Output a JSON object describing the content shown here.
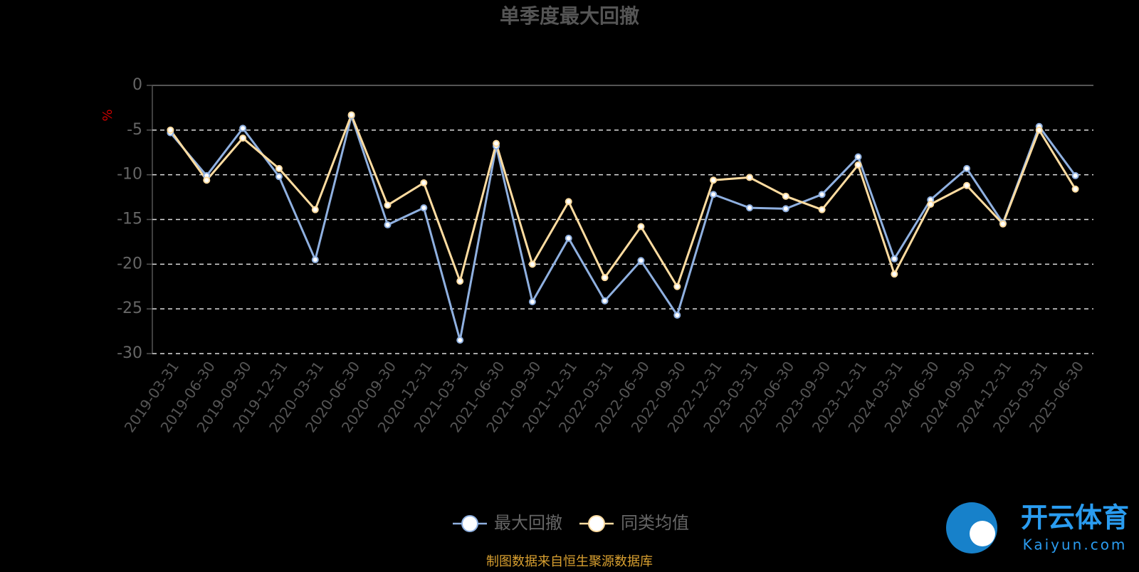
{
  "chart_data": {
    "type": "line",
    "title": "单季度最大回撤",
    "y_label": "%",
    "categories": [
      "2019-03-31",
      "2019-06-30",
      "2019-09-30",
      "2019-12-31",
      "2020-03-31",
      "2020-06-30",
      "2020-09-30",
      "2020-12-31",
      "2021-03-31",
      "2021-06-30",
      "2021-09-30",
      "2021-12-31",
      "2022-03-31",
      "2022-06-30",
      "2022-09-30",
      "2022-12-31",
      "2023-03-31",
      "2023-06-30",
      "2023-09-30",
      "2023-12-31",
      "2024-03-31",
      "2024-06-30",
      "2024-09-30",
      "2024-12-31",
      "2025-03-31",
      "2025-06-30"
    ],
    "series": [
      {
        "name": "最大回撤",
        "color": "#8fb0e0",
        "values": [
          -5.3,
          -10.1,
          -4.8,
          -10.2,
          -19.5,
          -3.4,
          -15.6,
          -13.7,
          -28.5,
          -6.8,
          -24.2,
          -17.1,
          -24.1,
          -19.6,
          -25.7,
          -12.2,
          -13.7,
          -13.8,
          -12.2,
          -8.0,
          -19.4,
          -12.8,
          -9.3,
          -15.4,
          -4.6,
          -10.1
        ]
      },
      {
        "name": "同类均值",
        "color": "#ffdca0",
        "values": [
          -5.0,
          -10.6,
          -5.9,
          -9.3,
          -13.9,
          -3.3,
          -13.4,
          -10.9,
          -21.9,
          -6.5,
          -20.0,
          -13.0,
          -21.5,
          -15.8,
          -22.5,
          -10.6,
          -10.3,
          -12.4,
          -13.9,
          -8.9,
          -21.1,
          -13.3,
          -11.2,
          -15.5,
          -5.0,
          -11.6
        ]
      }
    ],
    "ylim": [
      -30,
      0
    ],
    "yticks": [
      0,
      -5,
      -10,
      -15,
      -20,
      -25,
      -30
    ],
    "grid": true,
    "legend": "bottom",
    "source": "制图数据来自恒生聚源数据库"
  },
  "watermark": {
    "brand": "开云体育",
    "site": "Kaiyun.com"
  }
}
